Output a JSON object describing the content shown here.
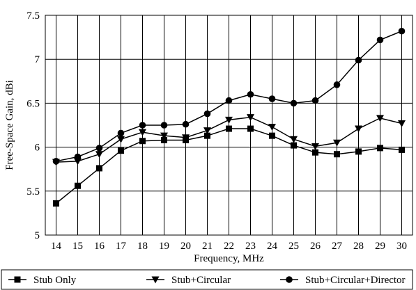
{
  "chart_data": {
    "type": "line",
    "title": "",
    "xlabel": "Frequency, MHz",
    "ylabel": "Free-Space Gain, dBi",
    "x": [
      14,
      15,
      16,
      17,
      18,
      19,
      20,
      21,
      22,
      23,
      24,
      25,
      26,
      27,
      28,
      29,
      30
    ],
    "x_tick_labels": [
      "14",
      "15",
      "16",
      "17",
      "18",
      "19",
      "20",
      "21",
      "22",
      "23",
      "24",
      "25",
      "26",
      "27",
      "28",
      "29",
      "30"
    ],
    "xlim": [
      13.5,
      30.5
    ],
    "ylim": [
      5,
      7.5
    ],
    "y_ticks": [
      5,
      5.5,
      6,
      6.5,
      7,
      7.5
    ],
    "y_tick_labels": [
      "5",
      "5.5",
      "6",
      "6.5",
      "7",
      "7.5"
    ],
    "grid": true,
    "legend_position": "bottom",
    "series": [
      {
        "name": "Stub Only",
        "marker": "square",
        "color": "#000000",
        "values": [
          5.36,
          5.56,
          5.76,
          5.96,
          6.07,
          6.08,
          6.08,
          6.13,
          6.21,
          6.21,
          6.13,
          6.02,
          5.94,
          5.92,
          5.95,
          5.99,
          5.97
        ]
      },
      {
        "name": "Stub+Circular",
        "marker": "triangle-down",
        "color": "#000000",
        "values": [
          5.83,
          5.84,
          5.92,
          6.09,
          6.17,
          6.13,
          6.11,
          6.19,
          6.31,
          6.34,
          6.23,
          6.09,
          6.01,
          6.05,
          6.21,
          6.33,
          6.27
        ]
      },
      {
        "name": "Stub+Circular+Director",
        "marker": "circle",
        "color": "#000000",
        "values": [
          5.84,
          5.89,
          5.99,
          6.16,
          6.25,
          6.25,
          6.26,
          6.38,
          6.53,
          6.6,
          6.55,
          6.5,
          6.53,
          6.71,
          6.99,
          7.22,
          7.32
        ]
      }
    ]
  }
}
